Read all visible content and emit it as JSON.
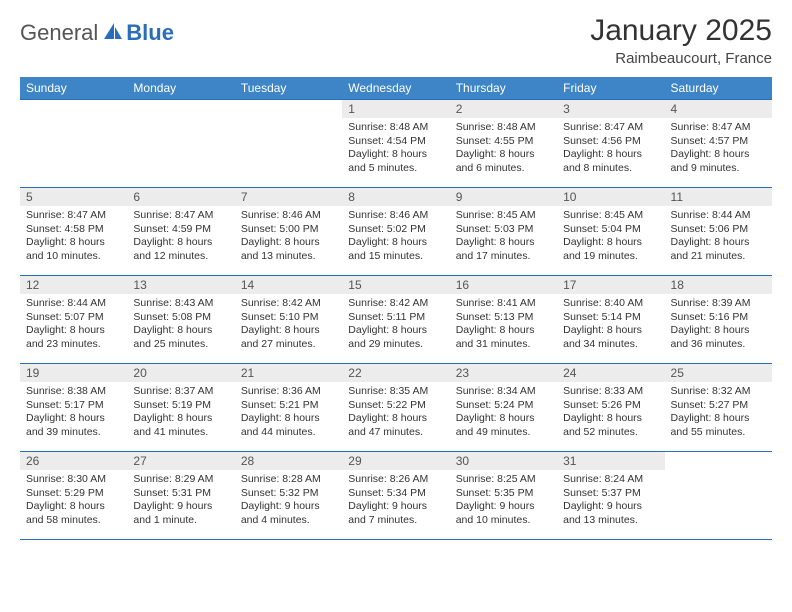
{
  "brand": {
    "general": "General",
    "blue": "Blue"
  },
  "title": "January 2025",
  "location": "Raimbeaucourt, France",
  "header_bg": "#3d85c6",
  "rule_color": "#2a6ebb",
  "daynum_bg": "#ececec",
  "text_color": "#333333",
  "font_size_body": 10.5,
  "weekdays": [
    "Sunday",
    "Monday",
    "Tuesday",
    "Wednesday",
    "Thursday",
    "Friday",
    "Saturday"
  ],
  "weeks": [
    [
      {
        "n": "",
        "sr": "",
        "ss": "",
        "dl": ""
      },
      {
        "n": "",
        "sr": "",
        "ss": "",
        "dl": ""
      },
      {
        "n": "",
        "sr": "",
        "ss": "",
        "dl": ""
      },
      {
        "n": "1",
        "sr": "Sunrise: 8:48 AM",
        "ss": "Sunset: 4:54 PM",
        "dl": "Daylight: 8 hours and 5 minutes."
      },
      {
        "n": "2",
        "sr": "Sunrise: 8:48 AM",
        "ss": "Sunset: 4:55 PM",
        "dl": "Daylight: 8 hours and 6 minutes."
      },
      {
        "n": "3",
        "sr": "Sunrise: 8:47 AM",
        "ss": "Sunset: 4:56 PM",
        "dl": "Daylight: 8 hours and 8 minutes."
      },
      {
        "n": "4",
        "sr": "Sunrise: 8:47 AM",
        "ss": "Sunset: 4:57 PM",
        "dl": "Daylight: 8 hours and 9 minutes."
      }
    ],
    [
      {
        "n": "5",
        "sr": "Sunrise: 8:47 AM",
        "ss": "Sunset: 4:58 PM",
        "dl": "Daylight: 8 hours and 10 minutes."
      },
      {
        "n": "6",
        "sr": "Sunrise: 8:47 AM",
        "ss": "Sunset: 4:59 PM",
        "dl": "Daylight: 8 hours and 12 minutes."
      },
      {
        "n": "7",
        "sr": "Sunrise: 8:46 AM",
        "ss": "Sunset: 5:00 PM",
        "dl": "Daylight: 8 hours and 13 minutes."
      },
      {
        "n": "8",
        "sr": "Sunrise: 8:46 AM",
        "ss": "Sunset: 5:02 PM",
        "dl": "Daylight: 8 hours and 15 minutes."
      },
      {
        "n": "9",
        "sr": "Sunrise: 8:45 AM",
        "ss": "Sunset: 5:03 PM",
        "dl": "Daylight: 8 hours and 17 minutes."
      },
      {
        "n": "10",
        "sr": "Sunrise: 8:45 AM",
        "ss": "Sunset: 5:04 PM",
        "dl": "Daylight: 8 hours and 19 minutes."
      },
      {
        "n": "11",
        "sr": "Sunrise: 8:44 AM",
        "ss": "Sunset: 5:06 PM",
        "dl": "Daylight: 8 hours and 21 minutes."
      }
    ],
    [
      {
        "n": "12",
        "sr": "Sunrise: 8:44 AM",
        "ss": "Sunset: 5:07 PM",
        "dl": "Daylight: 8 hours and 23 minutes."
      },
      {
        "n": "13",
        "sr": "Sunrise: 8:43 AM",
        "ss": "Sunset: 5:08 PM",
        "dl": "Daylight: 8 hours and 25 minutes."
      },
      {
        "n": "14",
        "sr": "Sunrise: 8:42 AM",
        "ss": "Sunset: 5:10 PM",
        "dl": "Daylight: 8 hours and 27 minutes."
      },
      {
        "n": "15",
        "sr": "Sunrise: 8:42 AM",
        "ss": "Sunset: 5:11 PM",
        "dl": "Daylight: 8 hours and 29 minutes."
      },
      {
        "n": "16",
        "sr": "Sunrise: 8:41 AM",
        "ss": "Sunset: 5:13 PM",
        "dl": "Daylight: 8 hours and 31 minutes."
      },
      {
        "n": "17",
        "sr": "Sunrise: 8:40 AM",
        "ss": "Sunset: 5:14 PM",
        "dl": "Daylight: 8 hours and 34 minutes."
      },
      {
        "n": "18",
        "sr": "Sunrise: 8:39 AM",
        "ss": "Sunset: 5:16 PM",
        "dl": "Daylight: 8 hours and 36 minutes."
      }
    ],
    [
      {
        "n": "19",
        "sr": "Sunrise: 8:38 AM",
        "ss": "Sunset: 5:17 PM",
        "dl": "Daylight: 8 hours and 39 minutes."
      },
      {
        "n": "20",
        "sr": "Sunrise: 8:37 AM",
        "ss": "Sunset: 5:19 PM",
        "dl": "Daylight: 8 hours and 41 minutes."
      },
      {
        "n": "21",
        "sr": "Sunrise: 8:36 AM",
        "ss": "Sunset: 5:21 PM",
        "dl": "Daylight: 8 hours and 44 minutes."
      },
      {
        "n": "22",
        "sr": "Sunrise: 8:35 AM",
        "ss": "Sunset: 5:22 PM",
        "dl": "Daylight: 8 hours and 47 minutes."
      },
      {
        "n": "23",
        "sr": "Sunrise: 8:34 AM",
        "ss": "Sunset: 5:24 PM",
        "dl": "Daylight: 8 hours and 49 minutes."
      },
      {
        "n": "24",
        "sr": "Sunrise: 8:33 AM",
        "ss": "Sunset: 5:26 PM",
        "dl": "Daylight: 8 hours and 52 minutes."
      },
      {
        "n": "25",
        "sr": "Sunrise: 8:32 AM",
        "ss": "Sunset: 5:27 PM",
        "dl": "Daylight: 8 hours and 55 minutes."
      }
    ],
    [
      {
        "n": "26",
        "sr": "Sunrise: 8:30 AM",
        "ss": "Sunset: 5:29 PM",
        "dl": "Daylight: 8 hours and 58 minutes."
      },
      {
        "n": "27",
        "sr": "Sunrise: 8:29 AM",
        "ss": "Sunset: 5:31 PM",
        "dl": "Daylight: 9 hours and 1 minute."
      },
      {
        "n": "28",
        "sr": "Sunrise: 8:28 AM",
        "ss": "Sunset: 5:32 PM",
        "dl": "Daylight: 9 hours and 4 minutes."
      },
      {
        "n": "29",
        "sr": "Sunrise: 8:26 AM",
        "ss": "Sunset: 5:34 PM",
        "dl": "Daylight: 9 hours and 7 minutes."
      },
      {
        "n": "30",
        "sr": "Sunrise: 8:25 AM",
        "ss": "Sunset: 5:35 PM",
        "dl": "Daylight: 9 hours and 10 minutes."
      },
      {
        "n": "31",
        "sr": "Sunrise: 8:24 AM",
        "ss": "Sunset: 5:37 PM",
        "dl": "Daylight: 9 hours and 13 minutes."
      },
      {
        "n": "",
        "sr": "",
        "ss": "",
        "dl": ""
      }
    ]
  ]
}
